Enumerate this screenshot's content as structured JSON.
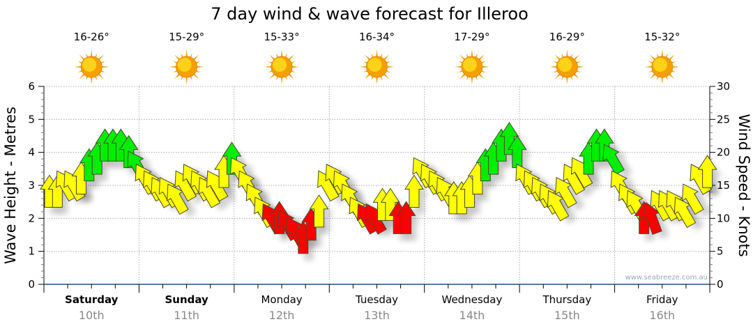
{
  "chart_data": {
    "type": "scatter",
    "title": "7 day wind & wave forecast for Illeroo",
    "ylabel_left": "Wave Height - Metres",
    "ylabel_right": "Wind Speed - Knots",
    "ylim_left": [
      0,
      6
    ],
    "ylim_right": [
      0,
      30
    ],
    "yticks_left": [
      "0",
      "1",
      "2",
      "3",
      "4",
      "5",
      "6"
    ],
    "yticks_right": [
      "0",
      "5",
      "10",
      "15",
      "20",
      "25",
      "30"
    ],
    "grid": true,
    "watermark": "www.seabreeze.com.au",
    "days": [
      {
        "name": "Saturday",
        "date": "10th",
        "temp": "16-26°",
        "bold": true
      },
      {
        "name": "Sunday",
        "date": "11th",
        "temp": "15-29°",
        "bold": true
      },
      {
        "name": "Monday",
        "date": "12th",
        "temp": "15-33°",
        "bold": false
      },
      {
        "name": "Tuesday",
        "date": "13th",
        "temp": "16-34°",
        "bold": false
      },
      {
        "name": "Wednesday",
        "date": "14th",
        "temp": "17-29°",
        "bold": false
      },
      {
        "name": "Thursday",
        "date": "15th",
        "temp": "16-29°",
        "bold": false
      },
      {
        "name": "Friday",
        "date": "16th",
        "temp": "15-32°",
        "bold": false
      }
    ],
    "weather_icon": "sunny-icon",
    "wind_interval_hours": 2,
    "wind_speed_knots": [
      14,
      14,
      15,
      15,
      16,
      18,
      19,
      21,
      21,
      21,
      20,
      18,
      16,
      15,
      14,
      14,
      13,
      15,
      16,
      15,
      14,
      15,
      17,
      19,
      17,
      15,
      13,
      11,
      10,
      10,
      9,
      8,
      7,
      9,
      11,
      15,
      16,
      15,
      13,
      11,
      10,
      10,
      12,
      12,
      10,
      10,
      14,
      17,
      16,
      15,
      14,
      13,
      13,
      14,
      16,
      18,
      19,
      21,
      22,
      20,
      16,
      15,
      14,
      13,
      12,
      14,
      16,
      17,
      19,
      21,
      21,
      19,
      15,
      13,
      12,
      10,
      10,
      12,
      12,
      12,
      11,
      13,
      16,
      17
    ],
    "wind_direction_deg": [
      0,
      0,
      330,
      330,
      0,
      0,
      0,
      0,
      0,
      0,
      0,
      330,
      330,
      330,
      330,
      330,
      330,
      330,
      330,
      330,
      330,
      330,
      0,
      0,
      330,
      330,
      330,
      330,
      330,
      0,
      330,
      330,
      0,
      0,
      0,
      330,
      330,
      330,
      330,
      330,
      330,
      330,
      0,
      0,
      0,
      0,
      0,
      330,
      330,
      330,
      330,
      0,
      0,
      0,
      0,
      0,
      0,
      0,
      0,
      0,
      330,
      330,
      330,
      330,
      330,
      330,
      330,
      330,
      0,
      0,
      0,
      330,
      330,
      330,
      330,
      0,
      340,
      330,
      330,
      330,
      330,
      330,
      330,
      0
    ],
    "colors": {
      "calm": "#ff0000",
      "moderate": "#ffff00",
      "strong": "#00ee00"
    },
    "thresholds_knots": {
      "moderate": 11,
      "strong": 18
    }
  }
}
